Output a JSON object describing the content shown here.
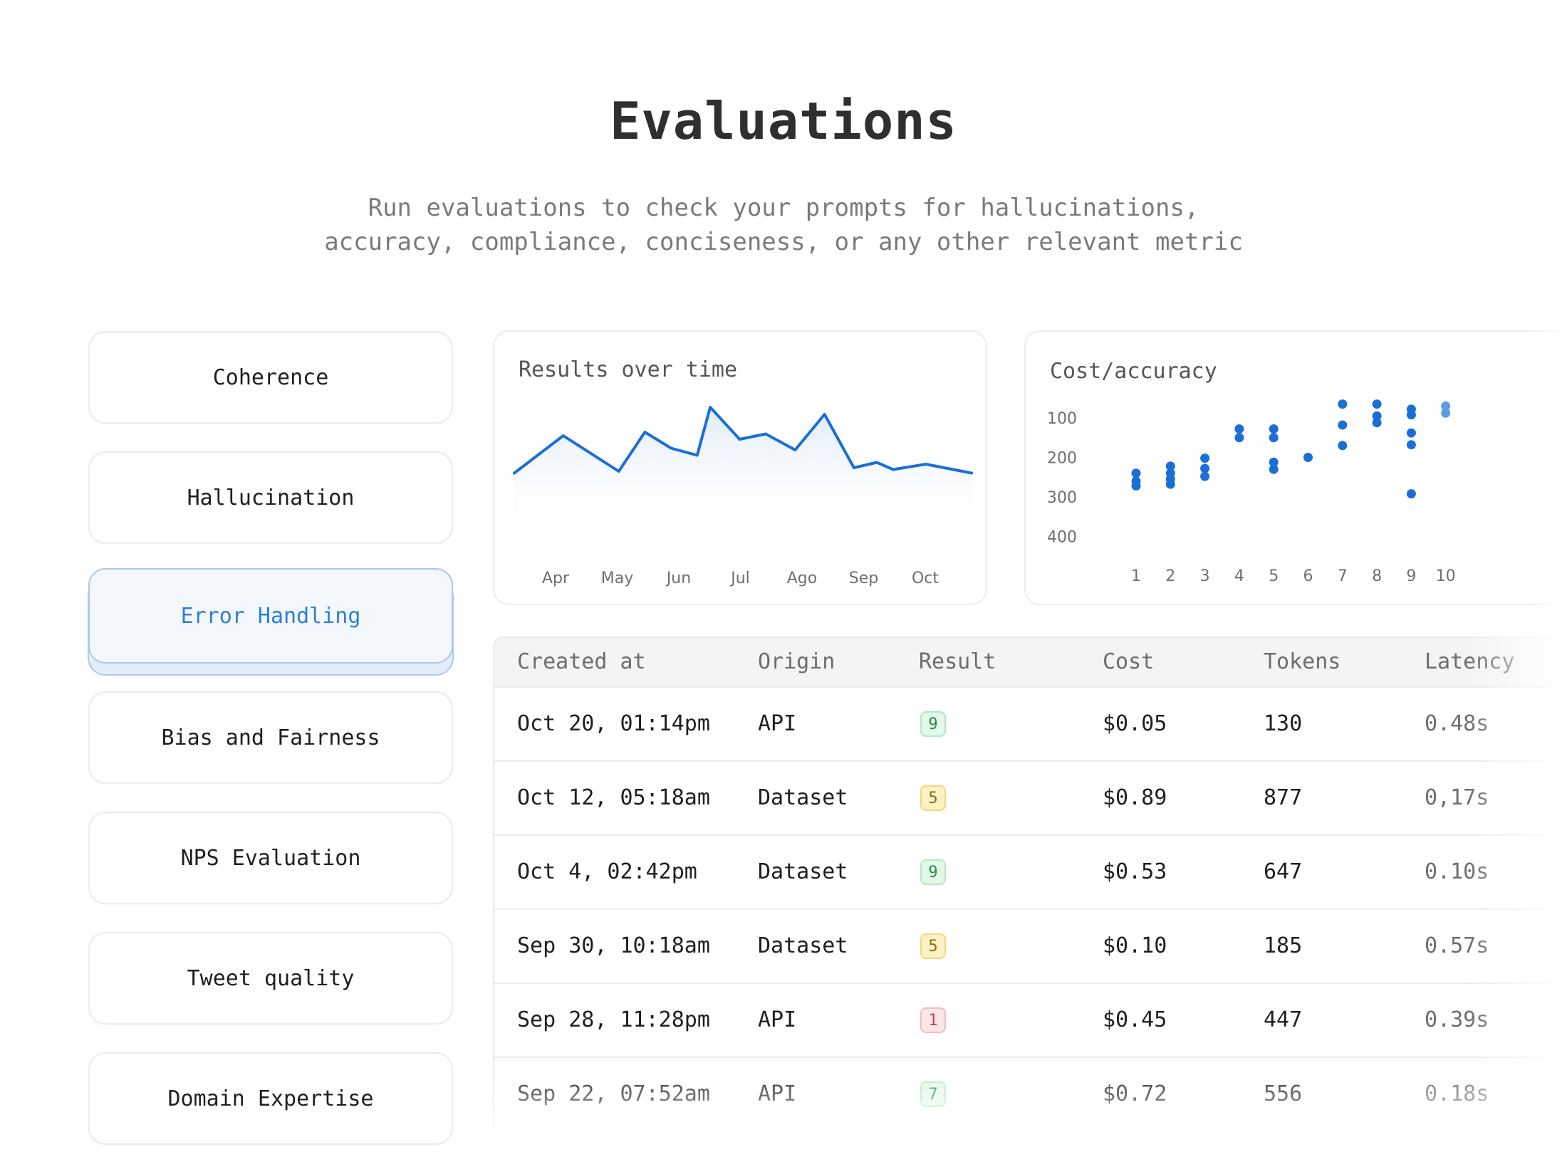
{
  "header": {
    "title": "Evaluations",
    "subtitle_line1": "Run evaluations to check your prompts for hallucinations,",
    "subtitle_line2": "accuracy, compliance, conciseness, or any other relevant metric"
  },
  "sidebar": {
    "items": [
      {
        "label": "Coherence",
        "active": false
      },
      {
        "label": "Hallucination",
        "active": false
      },
      {
        "label": "Error Handling",
        "active": true
      },
      {
        "label": "Bias and Fairness",
        "active": false
      },
      {
        "label": "NPS Evaluation",
        "active": false
      },
      {
        "label": "Tweet quality",
        "active": false
      },
      {
        "label": "Domain Expertise",
        "active": false
      }
    ]
  },
  "colors": {
    "accent": "#1a6fd6",
    "accent_light": "#5b9be4"
  },
  "chart_data": [
    {
      "type": "area",
      "title": "Results over time",
      "categories": [
        "Apr",
        "May",
        "Jun",
        "Jul",
        "Ago",
        "Sep",
        "Oct"
      ],
      "x": [
        0,
        0.75,
        1.6,
        2.0,
        2.4,
        2.8,
        3.0,
        3.45,
        3.85,
        4.3,
        4.75,
        5.2,
        5.55,
        5.8,
        6.3,
        7.0
      ],
      "values": [
        53,
        74,
        54,
        76,
        67,
        63,
        90,
        72,
        75,
        66,
        86,
        56,
        59,
        55,
        58,
        53
      ],
      "ylim": [
        0,
        100
      ],
      "grid": false
    },
    {
      "type": "scatter",
      "title": "Cost/accuracy",
      "x_ticks": [
        "1",
        "2",
        "3",
        "4",
        "5",
        "6",
        "7",
        "8",
        "9",
        "10"
      ],
      "y_ticks": [
        "100",
        "200",
        "300",
        "400"
      ],
      "ylim": [
        0,
        400
      ],
      "y_inverted": true,
      "grid": false,
      "points": [
        {
          "x": 1,
          "y": 240
        },
        {
          "x": 1,
          "y": 260
        },
        {
          "x": 1,
          "y": 272
        },
        {
          "x": 2,
          "y": 222
        },
        {
          "x": 2,
          "y": 240
        },
        {
          "x": 2,
          "y": 255
        },
        {
          "x": 2,
          "y": 268
        },
        {
          "x": 3,
          "y": 202
        },
        {
          "x": 3,
          "y": 228
        },
        {
          "x": 3,
          "y": 248
        },
        {
          "x": 4,
          "y": 128
        },
        {
          "x": 4,
          "y": 150
        },
        {
          "x": 5,
          "y": 128
        },
        {
          "x": 5,
          "y": 150
        },
        {
          "x": 5,
          "y": 212
        },
        {
          "x": 5,
          "y": 230
        },
        {
          "x": 6,
          "y": 200
        },
        {
          "x": 7,
          "y": 65
        },
        {
          "x": 7,
          "y": 118
        },
        {
          "x": 7,
          "y": 170
        },
        {
          "x": 8,
          "y": 65
        },
        {
          "x": 8,
          "y": 95
        },
        {
          "x": 8,
          "y": 112
        },
        {
          "x": 9,
          "y": 78
        },
        {
          "x": 9,
          "y": 92
        },
        {
          "x": 9,
          "y": 138
        },
        {
          "x": 9,
          "y": 168
        },
        {
          "x": 9,
          "y": 292
        },
        {
          "x": 10,
          "y": 70
        },
        {
          "x": 10,
          "y": 88
        }
      ]
    }
  ],
  "table": {
    "headers": [
      "Created at",
      "Origin",
      "Result",
      "Cost",
      "Tokens",
      "Latency"
    ],
    "rows": [
      {
        "created": "Oct 20, 01:14pm",
        "origin": "API",
        "result": "9",
        "result_color": "green",
        "cost": "$0.05",
        "tokens": "130",
        "latency": "0.48s"
      },
      {
        "created": "Oct 12, 05:18am",
        "origin": "Dataset",
        "result": "5",
        "result_color": "yellow",
        "cost": "$0.89",
        "tokens": "877",
        "latency": "0,17s"
      },
      {
        "created": "Oct 4, 02:42pm",
        "origin": "Dataset",
        "result": "9",
        "result_color": "green",
        "cost": "$0.53",
        "tokens": "647",
        "latency": "0.10s"
      },
      {
        "created": "Sep 30, 10:18am",
        "origin": "Dataset",
        "result": "5",
        "result_color": "yellow",
        "cost": "$0.10",
        "tokens": "185",
        "latency": "0.57s"
      },
      {
        "created": "Sep 28, 11:28pm",
        "origin": "API",
        "result": "1",
        "result_color": "red",
        "cost": "$0.45",
        "tokens": "447",
        "latency": "0.39s"
      },
      {
        "created": "Sep 22, 07:52am",
        "origin": "API",
        "result": "7",
        "result_color": "green",
        "cost": "$0.72",
        "tokens": "556",
        "latency": "0.18s"
      }
    ]
  }
}
